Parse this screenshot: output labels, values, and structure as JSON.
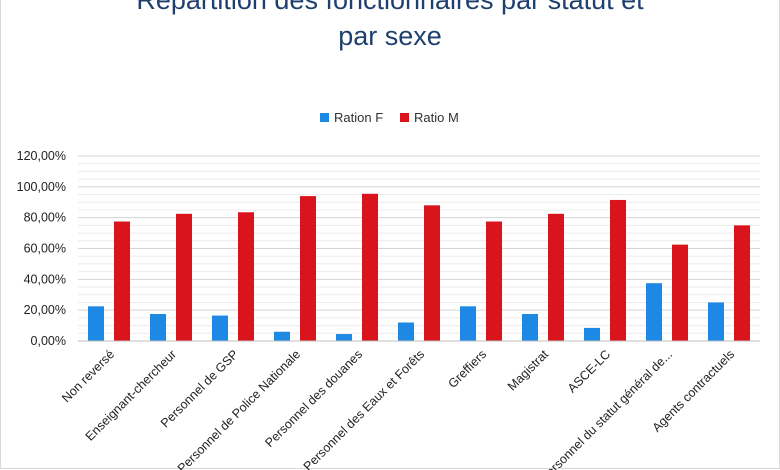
{
  "title_line1": "Répartition des fonctionnaires par statut et",
  "title_line2": "par sexe",
  "chart_data": {
    "type": "bar",
    "categories": [
      "Non reversé",
      "Enseignant-chercheur",
      "Personnel de GSP",
      "Personnel de Police Nationale",
      "Personnel des douanes",
      "Personnel des Eaux et Forêts",
      "Greffiers",
      "Magistrat",
      "ASCE-LC",
      "Personnel du statut général de...",
      "Agents contractuels"
    ],
    "series": [
      {
        "name": "Ration F",
        "color": "#1e88e5",
        "values": [
          22.5,
          17.5,
          16.5,
          6,
          4.5,
          12,
          22.5,
          17.5,
          8.5,
          37.5,
          25
        ]
      },
      {
        "name": "Ratio M",
        "color": "#d9141c",
        "values": [
          77.5,
          82.5,
          83.5,
          94,
          95.5,
          88,
          77.5,
          82.5,
          91.5,
          62.5,
          75
        ]
      }
    ],
    "y_ticks": [
      "0,00%",
      "20,00%",
      "40,00%",
      "60,00%",
      "80,00%",
      "100,00%",
      "120,00%"
    ],
    "ylim": [
      0,
      120
    ],
    "legend_position": "top-center",
    "grid": true
  }
}
